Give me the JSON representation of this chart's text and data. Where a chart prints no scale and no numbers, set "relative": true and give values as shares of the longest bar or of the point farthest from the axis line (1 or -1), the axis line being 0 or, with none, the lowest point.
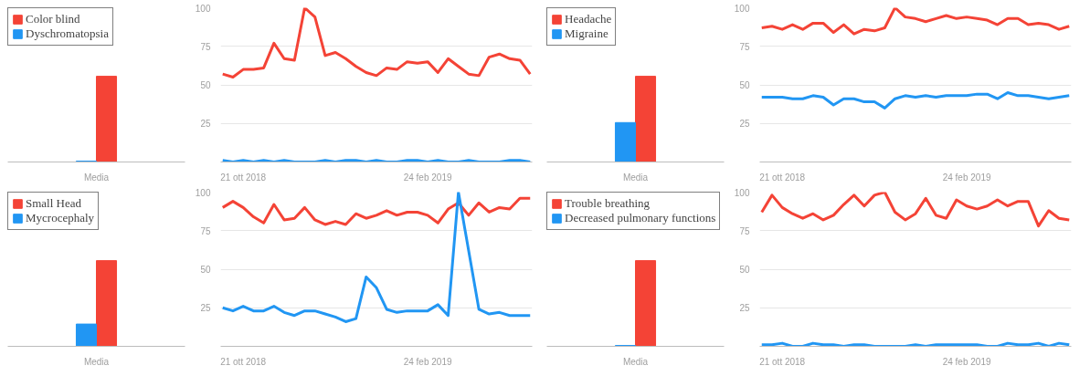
{
  "chart_data": [
    {
      "type": "bar",
      "relative": true,
      "categories": [
        "Media"
      ],
      "legend": "top left",
      "series": [
        {
          "name": "Color blind",
          "color": "#f44336",
          "values": [
            1
          ]
        },
        {
          "name": "Dyschromatopsia",
          "color": "#2196f3",
          "values": [
            0.01
          ]
        }
      ]
    },
    {
      "type": "line",
      "categories": [
        null,
        null,
        "21 ott 2018",
        null,
        null,
        null,
        null,
        null,
        null,
        null,
        null,
        null,
        null,
        null,
        null,
        null,
        null,
        null,
        null,
        null,
        "24 feb 2019",
        null,
        null,
        null,
        null,
        null,
        null,
        null,
        null,
        null,
        null
      ],
      "ylim": [
        0,
        100
      ],
      "yticks": [
        25,
        50,
        75,
        100
      ],
      "grid": "y",
      "series": [
        {
          "color": "#f44336",
          "values": [
            57,
            55,
            60,
            60,
            61,
            77,
            67,
            66,
            100,
            94,
            69,
            71,
            67,
            62,
            58,
            56,
            61,
            60,
            65,
            64,
            65,
            58,
            67,
            62,
            57,
            56,
            68,
            70,
            67,
            66,
            57
          ]
        },
        {
          "color": "#2196f3",
          "values": [
            1,
            0,
            1,
            0,
            1,
            0,
            1,
            0,
            0,
            0,
            1,
            0,
            1,
            1,
            0,
            1,
            0,
            0,
            1,
            1,
            0,
            1,
            0,
            0,
            1,
            0,
            0,
            0,
            1,
            1,
            0
          ]
        }
      ]
    },
    {
      "type": "bar",
      "relative": true,
      "categories": [
        "Media"
      ],
      "legend": "top left",
      "series": [
        {
          "name": "Headache",
          "color": "#f44336",
          "values": [
            1
          ]
        },
        {
          "name": "Migraine",
          "color": "#2196f3",
          "values": [
            0.46
          ]
        }
      ]
    },
    {
      "type": "line",
      "categories": [
        null,
        null,
        "21 ott 2018",
        null,
        null,
        null,
        null,
        null,
        null,
        null,
        null,
        null,
        null,
        null,
        null,
        null,
        null,
        null,
        null,
        null,
        "24 feb 2019",
        null,
        null,
        null,
        null,
        null,
        null,
        null,
        null,
        null,
        null
      ],
      "ylim": [
        0,
        100
      ],
      "yticks": [
        25,
        50,
        75,
        100
      ],
      "grid": "y",
      "series": [
        {
          "color": "#f44336",
          "values": [
            87,
            88,
            86,
            89,
            86,
            90,
            90,
            84,
            89,
            83,
            86,
            85,
            87,
            100,
            94,
            93,
            91,
            93,
            95,
            93,
            94,
            93,
            92,
            89,
            93,
            93,
            89,
            90,
            89,
            86,
            88
          ]
        },
        {
          "color": "#2196f3",
          "values": [
            42,
            42,
            42,
            41,
            41,
            43,
            42,
            37,
            41,
            41,
            39,
            39,
            35,
            41,
            43,
            42,
            43,
            42,
            43,
            43,
            43,
            44,
            44,
            41,
            45,
            43,
            43,
            42,
            41,
            42,
            43
          ]
        }
      ]
    },
    {
      "type": "bar",
      "relative": true,
      "categories": [
        "Media"
      ],
      "legend": "top left",
      "series": [
        {
          "name": "Small Head",
          "color": "#f44336",
          "values": [
            1
          ]
        },
        {
          "name": "Mycrocephaly",
          "color": "#2196f3",
          "values": [
            0.26
          ]
        }
      ]
    },
    {
      "type": "line",
      "categories": [
        null,
        null,
        "21 ott 2018",
        null,
        null,
        null,
        null,
        null,
        null,
        null,
        null,
        null,
        null,
        null,
        null,
        null,
        null,
        null,
        null,
        null,
        "24 feb 2019",
        null,
        null,
        null,
        null,
        null,
        null,
        null,
        null,
        null,
        null
      ],
      "ylim": [
        0,
        100
      ],
      "yticks": [
        25,
        50,
        75,
        100
      ],
      "grid": "y",
      "series": [
        {
          "color": "#f44336",
          "values": [
            90,
            94,
            90,
            84,
            80,
            92,
            82,
            83,
            90,
            82,
            79,
            81,
            79,
            86,
            83,
            85,
            88,
            85,
            87,
            87,
            85,
            80,
            89,
            93,
            85,
            93,
            87,
            90,
            89,
            96,
            96
          ]
        },
        {
          "color": "#2196f3",
          "values": [
            25,
            23,
            26,
            23,
            23,
            26,
            22,
            20,
            23,
            23,
            21,
            19,
            16,
            18,
            45,
            38,
            24,
            22,
            23,
            23,
            23,
            27,
            20,
            100,
            62,
            24,
            21,
            22,
            20,
            20,
            20
          ]
        }
      ]
    },
    {
      "type": "bar",
      "relative": true,
      "categories": [
        "Media"
      ],
      "legend": "top left",
      "series": [
        {
          "name": "Trouble breathing",
          "color": "#f44336",
          "values": [
            1
          ]
        },
        {
          "name": "Decreased pulmonary functions",
          "color": "#2196f3",
          "values": [
            0.01
          ]
        }
      ]
    },
    {
      "type": "line",
      "categories": [
        null,
        null,
        "21 ott 2018",
        null,
        null,
        null,
        null,
        null,
        null,
        null,
        null,
        null,
        null,
        null,
        null,
        null,
        null,
        null,
        null,
        null,
        "24 feb 2019",
        null,
        null,
        null,
        null,
        null,
        null,
        null,
        null,
        null,
        null
      ],
      "ylim": [
        0,
        100
      ],
      "yticks": [
        25,
        50,
        75,
        100
      ],
      "grid": "y",
      "series": [
        {
          "color": "#f44336",
          "values": [
            87,
            98,
            90,
            86,
            83,
            86,
            82,
            85,
            92,
            98,
            91,
            98,
            100,
            87,
            82,
            86,
            96,
            85,
            83,
            95,
            91,
            89,
            91,
            95,
            91,
            94,
            94,
            78,
            88,
            83,
            82
          ]
        },
        {
          "color": "#2196f3",
          "values": [
            1,
            1,
            2,
            0,
            0,
            2,
            1,
            1,
            0,
            1,
            1,
            0,
            0,
            0,
            0,
            1,
            0,
            1,
            1,
            1,
            1,
            1,
            0,
            0,
            2,
            1,
            1,
            2,
            0,
            2,
            1
          ]
        }
      ]
    }
  ]
}
